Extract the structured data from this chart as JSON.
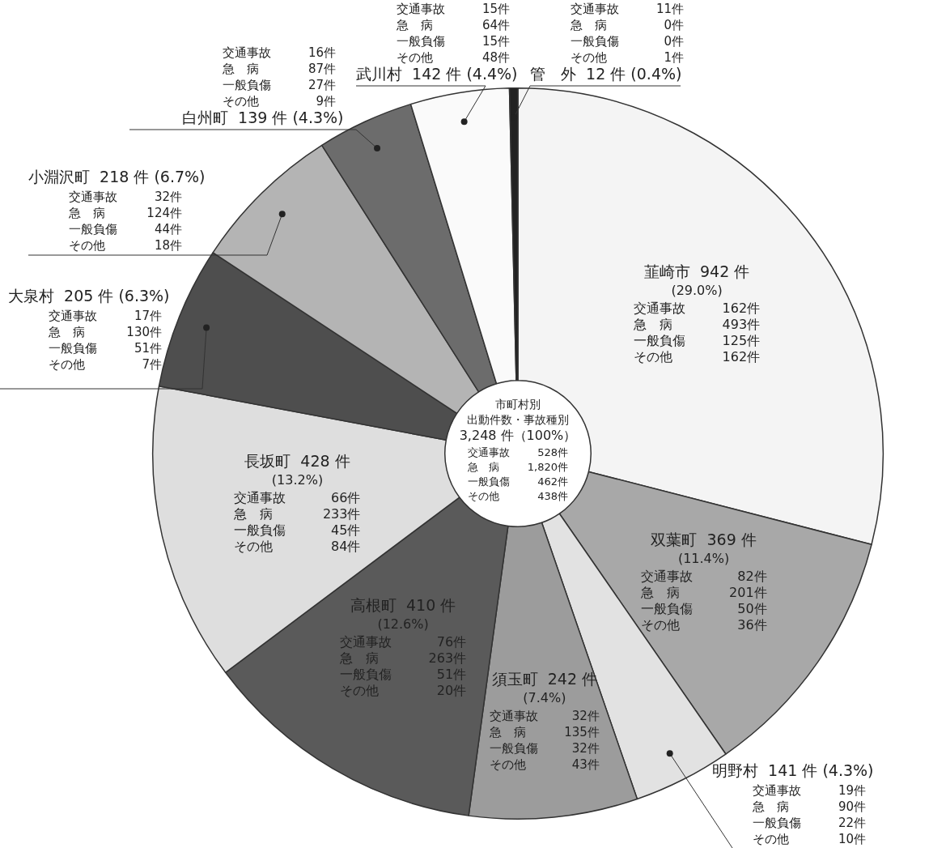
{
  "chart_data": {
    "type": "donut",
    "title": "市町村別",
    "subtitle": "出動件数・事故種別",
    "categories": [
      "韮崎市",
      "双葉町",
      "明野村",
      "須玉町",
      "高根町",
      "長坂町",
      "大泉村",
      "小淵沢町",
      "白州町",
      "武川村",
      "管　外"
    ],
    "values": [
      942,
      369,
      141,
      242,
      410,
      428,
      205,
      218,
      139,
      142,
      12
    ],
    "colors": [
      "#f4f4f4",
      "#a8a8a8",
      "#e2e2e2",
      "#9c9c9c",
      "#5a5a5a",
      "#dedede",
      "#4e4e4e",
      "#b4b4b4",
      "#6c6c6c",
      "#fafafa",
      "#222222"
    ],
    "value_labels": [
      "942 件\n(29.0%)",
      "369 件\n(11.4%)",
      "141 件 (4.3%)",
      "242 件\n(7.4%)",
      "410 件\n(12.6%)",
      "428 件\n(13.2%)",
      "205 件 (6.3%)",
      "218 件 (6.7%)",
      "139 件 (4.3%)",
      "142 件 (4.4%)",
      "12 件 (0.4%)"
    ],
    "annotations": [
      "3,248 件（100%）",
      "交通事故 528件",
      "急　病 1,820件",
      "一般負傷 462件",
      "その他 438件",
      "交通事故 162件",
      "急　病 493件",
      "一般負傷 125件",
      "その他 162件",
      "交通事故 82件",
      "急　病 201件",
      "一般負傷 50件",
      "その他 36件",
      "交通事故 19件",
      "急　病 90件",
      "一般負傷 22件",
      "その他 10件",
      "交通事故 32件",
      "急　病 135件",
      "一般負傷 32件",
      "その他 43件",
      "交通事故 76件",
      "急　病 263件",
      "一般負傷 51件",
      "その他 20件",
      "交通事故 66件",
      "急　病 233件",
      "一般負傷 45件",
      "その他 84件",
      "交通事故 17件",
      "急　病 130件",
      "一般負傷 51件",
      "その他 7件",
      "交通事故 32件",
      "急　病 124件",
      "一般負傷 44件",
      "その他 18件",
      "交通事故 16件",
      "急　病 87件",
      "一般負傷 27件",
      "その他 9件",
      "交通事故 15件",
      "急　病 64件",
      "一般負傷 15件",
      "その他 48件",
      "交通事故 11件",
      "急　病 0件",
      "一般負傷 0件",
      "その他 1件"
    ],
    "legend": false
  }
}
